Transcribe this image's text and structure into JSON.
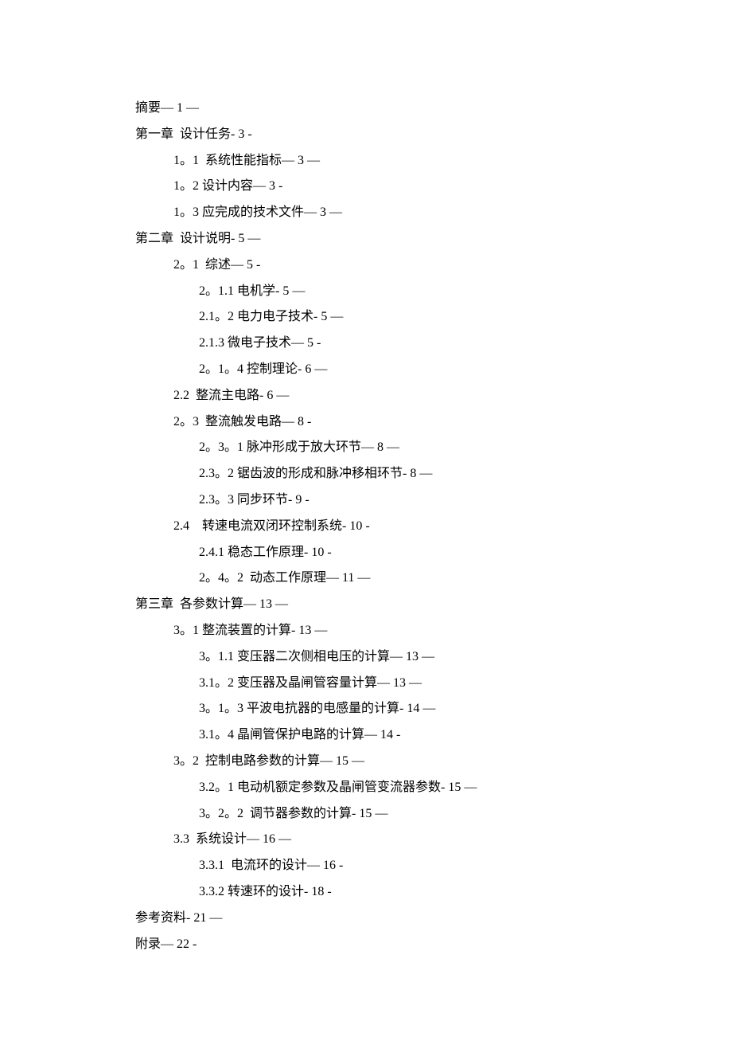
{
  "toc": {
    "font_family": "SimSun",
    "font_size_pt": 12,
    "text_color": "#000000",
    "background_color": "#ffffff",
    "line_height": 2.05,
    "entries": [
      {
        "indent": 0,
        "text": "摘要— 1 —"
      },
      {
        "indent": 0,
        "text": "第一章  设计任务- 3 -"
      },
      {
        "indent": 1,
        "text": "1。1  系统性能指标— 3 —"
      },
      {
        "indent": 1,
        "text": "1。2 设计内容— 3 -"
      },
      {
        "indent": 1,
        "text": "1。3 应完成的技术文件— 3 —"
      },
      {
        "indent": 0,
        "text": "第二章  设计说明- 5 —"
      },
      {
        "indent": 1,
        "text": "2。1  综述— 5 -"
      },
      {
        "indent": 2,
        "text": "2。1.1 电机学- 5 —"
      },
      {
        "indent": 2,
        "text": "2.1。2 电力电子技术- 5 —"
      },
      {
        "indent": 2,
        "text": "2.1.3 微电子技术— 5 -"
      },
      {
        "indent": 2,
        "text": "2。1。4 控制理论- 6 —"
      },
      {
        "indent": 1,
        "text": "2.2  整流主电路- 6 —"
      },
      {
        "indent": 1,
        "text": "2。3  整流触发电路— 8 -"
      },
      {
        "indent": 2,
        "text": "2。3。1 脉冲形成于放大环节— 8 —"
      },
      {
        "indent": 2,
        "text": "2.3。2 锯齿波的形成和脉冲移相环节- 8 —"
      },
      {
        "indent": 2,
        "text": "2.3。3 同步环节- 9 -"
      },
      {
        "indent": 1,
        "text": "2.4    转速电流双闭环控制系统- 10 -"
      },
      {
        "indent": 2,
        "text": "2.4.1 稳态工作原理- 10 -"
      },
      {
        "indent": 2,
        "text": "2。4。2  动态工作原理— 11 —"
      },
      {
        "indent": 0,
        "text": "第三章  各参数计算— 13 —"
      },
      {
        "indent": 1,
        "text": "3。1 整流装置的计算- 13 —"
      },
      {
        "indent": 2,
        "text": "3。1.1 变压器二次侧相电压的计算— 13 —"
      },
      {
        "indent": 2,
        "text": "3.1。2 变压器及晶闸管容量计算— 13 —"
      },
      {
        "indent": 2,
        "text": "3。1。3 平波电抗器的电感量的计算- 14 —"
      },
      {
        "indent": 2,
        "text": "3.1。4 晶闸管保护电路的计算— 14 -"
      },
      {
        "indent": 1,
        "text": "3。2  控制电路参数的计算— 15 —"
      },
      {
        "indent": 2,
        "text": "3.2。1 电动机额定参数及晶闸管变流器参数- 15 —"
      },
      {
        "indent": 2,
        "text": "3。2。2  调节器参数的计算- 15 —"
      },
      {
        "indent": 1,
        "text": "3.3  系统设计— 16 —"
      },
      {
        "indent": 2,
        "text": "3.3.1  电流环的设计— 16 -"
      },
      {
        "indent": 2,
        "text": "3.3.2 转速环的设计- 18 -"
      },
      {
        "indent": 0,
        "text": "参考资料- 21 —"
      },
      {
        "indent": 0,
        "text": "附录— 22 -"
      }
    ]
  }
}
